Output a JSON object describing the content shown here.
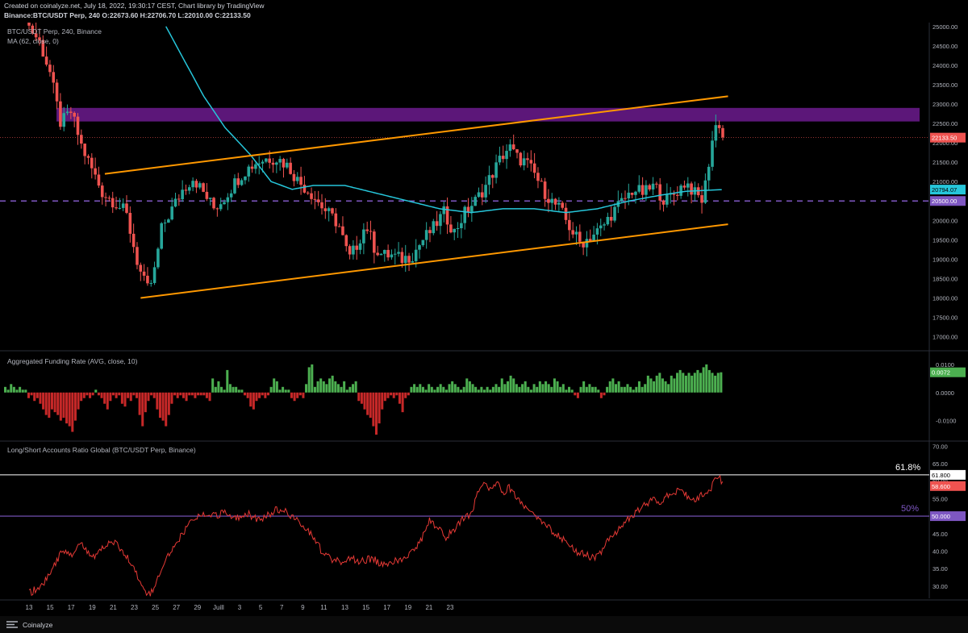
{
  "header": {
    "created_line": "Created on coinalyze.net, July 18, 2022, 19:30:17 CEST, Chart library by TradingView",
    "ohlc_line": "Binance:BTC/USDT Perp, 240 O:22673.60 H:22706.70 L:22010.00 C:22133.50"
  },
  "main_pane": {
    "symbol_label": "BTC/USDT Perp, 240, Binance",
    "ma_label": "MA (62, close, 0)"
  },
  "funding_pane": {
    "label": "Aggregated Funding Rate (AVG, close, 10)"
  },
  "ratio_pane": {
    "label": "Long/Short Accounts Ratio Global (BTC/USDT Perp, Binance)",
    "fib_upper": "61.8%",
    "fib_lower": "50%"
  },
  "footer": {
    "logo": "Coinalyze"
  },
  "colors": {
    "up": "#26a69a",
    "down": "#ef5350",
    "ma": "#26c6da",
    "trend": "#ff9800",
    "zone": "#7b1fa2",
    "dashed": "#7e57c2",
    "hist_up": "#4caf50",
    "hist_down": "#c62828",
    "ratio_line": "#e53935",
    "fib_upper": "#ffffff",
    "fib_lower": "#7e57c2"
  },
  "chart_data": [
    {
      "type": "line",
      "name": "price",
      "x_ticks": [
        "13",
        "15",
        "17",
        "19",
        "21",
        "23",
        "25",
        "27",
        "29",
        "Juill",
        "3",
        "5",
        "7",
        "9",
        "11",
        "13",
        "15",
        "17",
        "19",
        "21",
        "23"
      ],
      "y_ticks": [
        17000,
        17500,
        18000,
        18500,
        19000,
        19500,
        20000,
        20500,
        21000,
        21500,
        22000,
        22500,
        23000,
        23500,
        24000,
        24500,
        25000
      ],
      "y_tick_labels": [
        "17000.00",
        "17500.00",
        "18000.00",
        "18500.00",
        "19000.00",
        "19500.00",
        "20000.00",
        "20500.00",
        "21000.00",
        "21500.00",
        "22000.00",
        "22500.00",
        "23000.00",
        "23500.00",
        "24000.00",
        "24500.00",
        "25000.00"
      ],
      "ylim": [
        16700,
        25100
      ],
      "key_points": [
        [
          0,
          25000
        ],
        [
          0.5,
          24600
        ],
        [
          1,
          23800
        ],
        [
          1.5,
          22500
        ],
        [
          2,
          22800
        ],
        [
          2.5,
          21900
        ],
        [
          3,
          21300
        ],
        [
          3.5,
          20700
        ],
        [
          4,
          20500
        ],
        [
          4.6,
          20200
        ],
        [
          5.2,
          18800
        ],
        [
          5.6,
          18200
        ],
        [
          5.9,
          18500
        ],
        [
          6.3,
          19800
        ],
        [
          6.8,
          20300
        ],
        [
          7.3,
          20800
        ],
        [
          7.8,
          21100
        ],
        [
          8.3,
          20700
        ],
        [
          8.8,
          20300
        ],
        [
          9.3,
          20600
        ],
        [
          9.8,
          21000
        ],
        [
          10.3,
          21300
        ],
        [
          10.8,
          21500
        ],
        [
          11.3,
          21600
        ],
        [
          11.8,
          21600
        ],
        [
          12.3,
          21400
        ],
        [
          12.8,
          21000
        ],
        [
          13.4,
          20700
        ],
        [
          14.0,
          20300
        ],
        [
          14.7,
          19900
        ],
        [
          15.2,
          19000
        ],
        [
          15.6,
          19400
        ],
        [
          16.0,
          19900
        ],
        [
          16.4,
          19300
        ],
        [
          16.8,
          19100
        ],
        [
          17.2,
          19100
        ],
        [
          17.7,
          19000
        ],
        [
          18.2,
          19100
        ],
        [
          18.7,
          19500
        ],
        [
          19.2,
          19800
        ],
        [
          19.7,
          20200
        ],
        [
          20.2,
          19700
        ],
        [
          20.7,
          20200
        ],
        [
          21.2,
          20500
        ],
        [
          21.7,
          20900
        ],
        [
          22.0,
          21200
        ],
        [
          22.4,
          21600
        ],
        [
          22.8,
          21900
        ],
        [
          23.2,
          21600
        ],
        [
          23.6,
          21500
        ],
        [
          24.0,
          21200
        ],
        [
          24.4,
          20800
        ],
        [
          24.8,
          20500
        ],
        [
          25.2,
          20300
        ],
        [
          25.7,
          19800
        ],
        [
          26.2,
          19400
        ],
        [
          26.7,
          19600
        ],
        [
          27.2,
          19800
        ],
        [
          27.7,
          20200
        ],
        [
          28.2,
          20500
        ],
        [
          28.7,
          20800
        ],
        [
          29.2,
          20700
        ],
        [
          29.7,
          20900
        ],
        [
          30.2,
          20500
        ],
        [
          30.7,
          20700
        ],
        [
          31.2,
          21000
        ],
        [
          31.6,
          20700
        ],
        [
          32.0,
          20500
        ],
        [
          32.2,
          21200
        ],
        [
          32.55,
          22400
        ],
        [
          32.8,
          22500
        ],
        [
          32.95,
          22133.5
        ]
      ]
    },
    {
      "type": "line",
      "name": "MA (62, close, 0)",
      "key_points": [
        [
          6.5,
          25000
        ],
        [
          7.5,
          24000
        ],
        [
          8.3,
          23200
        ],
        [
          9.3,
          22400
        ],
        [
          10.5,
          21700
        ],
        [
          11.5,
          21000
        ],
        [
          12.5,
          20800
        ],
        [
          13.5,
          20900
        ],
        [
          15.0,
          20900
        ],
        [
          16.5,
          20700
        ],
        [
          18.0,
          20500
        ],
        [
          19.5,
          20300
        ],
        [
          21.0,
          20200
        ],
        [
          22.5,
          20300
        ],
        [
          24.0,
          20300
        ],
        [
          25.5,
          20200
        ],
        [
          27.0,
          20300
        ],
        [
          28.5,
          20500
        ],
        [
          30.0,
          20650
        ],
        [
          31.2,
          20750
        ],
        [
          32.95,
          20794.07
        ]
      ],
      "last_value": 20794.07,
      "last_label": "20794.07"
    },
    {
      "type": "annotation",
      "resistance_zone": [
        22550,
        22900
      ],
      "dashed_level": 20500,
      "dashed_label": "20500.00",
      "last_price_label": "22133.50",
      "upper_trendline": [
        [
          3.6,
          21200
        ],
        [
          33.2,
          23200
        ]
      ],
      "lower_trendline": [
        [
          5.3,
          18000
        ],
        [
          33.2,
          19900
        ]
      ]
    },
    {
      "type": "bar",
      "name": "Aggregated Funding Rate (AVG, close, 10)",
      "y_ticks": [
        -0.01,
        0,
        0.01
      ],
      "y_tick_labels": [
        "-0.0100",
        "0.0000",
        "0.0100"
      ],
      "ylim": [
        -0.017,
        0.014
      ],
      "last_value": 0.0072,
      "last_label": "0.0072",
      "values": [
        0.002,
        0.001,
        0.003,
        0.002,
        0.001,
        0.002,
        0.001,
        0.001,
        -0.002,
        -0.001,
        -0.003,
        -0.002,
        -0.004,
        -0.006,
        -0.008,
        -0.009,
        -0.006,
        -0.007,
        -0.008,
        -0.01,
        -0.009,
        -0.011,
        -0.012,
        -0.014,
        -0.01,
        -0.006,
        -0.003,
        -0.002,
        -0.001,
        -0.002,
        -0.001,
        0.001,
        -0.001,
        -0.002,
        -0.004,
        -0.006,
        -0.003,
        -0.001,
        -0.002,
        -0.001,
        -0.004,
        -0.005,
        -0.002,
        -0.003,
        -0.001,
        -0.002,
        -0.008,
        -0.012,
        -0.007,
        -0.003,
        -0.001,
        -0.002,
        -0.006,
        -0.009,
        -0.01,
        -0.012,
        -0.008,
        -0.004,
        -0.001,
        -0.002,
        -0.001,
        -0.002,
        -0.003,
        -0.001,
        -0.001,
        -0.002,
        -0.001,
        -0.001,
        -0.001,
        -0.002,
        -0.003,
        0.005,
        0.002,
        0.004,
        0.002,
        0.001,
        0.008,
        0.003,
        0.002,
        0.002,
        0.001,
        0.001,
        -0.001,
        -0.002,
        -0.005,
        -0.006,
        -0.003,
        -0.002,
        -0.001,
        -0.002,
        -0.001,
        0.002,
        0.005,
        0.004,
        0.001,
        0.002,
        0.001,
        0.001,
        -0.002,
        -0.003,
        -0.002,
        -0.001,
        -0.002,
        0.003,
        0.009,
        0.01,
        0.002,
        0.004,
        0.005,
        0.004,
        0.003,
        0.005,
        0.006,
        0.004,
        0.003,
        0.002,
        0.004,
        0.001,
        0.002,
        0.003,
        0.004,
        -0.003,
        -0.004,
        -0.006,
        -0.008,
        -0.009,
        -0.012,
        -0.015,
        -0.011,
        -0.006,
        -0.003,
        -0.002,
        -0.001,
        -0.002,
        -0.001,
        -0.004,
        -0.007,
        -0.002,
        -0.001,
        0.002,
        0.003,
        0.002,
        0.003,
        0.002,
        0.001,
        0.003,
        0.002,
        0.001,
        0.002,
        0.003,
        0.002,
        0.001,
        0.003,
        0.004,
        0.003,
        0.002,
        0.001,
        0.002,
        0.005,
        0.004,
        0.003,
        0.002,
        0.001,
        0.002,
        0.001,
        0.002,
        0.001,
        0.002,
        0.003,
        0.002,
        0.005,
        0.003,
        0.004,
        0.006,
        0.005,
        0.003,
        0.002,
        0.003,
        0.004,
        0.002,
        0.001,
        0.003,
        0.002,
        0.004,
        0.003,
        0.004,
        0.003,
        0.002,
        0.005,
        0.004,
        0.002,
        0.003,
        0.001,
        0.002,
        0.001,
        -0.001,
        -0.002,
        0.002,
        0.004,
        0.002,
        0.003,
        0.002,
        0.002,
        0.001,
        -0.002,
        -0.001,
        0.002,
        0.004,
        0.005,
        0.003,
        0.004,
        0.002,
        0.002,
        0.003,
        0.002,
        0.001,
        0.002,
        0.004,
        0.002,
        0.003,
        0.006,
        0.005,
        0.004,
        0.006,
        0.007,
        0.005,
        0.004,
        0.003,
        0.006,
        0.005,
        0.007,
        0.008,
        0.007,
        0.006,
        0.007,
        0.006,
        0.007,
        0.008,
        0.007,
        0.009,
        0.01,
        0.008,
        0.007,
        0.006,
        0.007,
        0.0072
      ]
    },
    {
      "type": "line",
      "name": "Long/Short Accounts Ratio Global (BTC/USDT Perp, Binance)",
      "y_ticks": [
        30,
        35,
        40,
        45,
        50,
        55,
        60,
        65,
        70
      ],
      "y_tick_labels": [
        "30.00",
        "35.00",
        "40.00",
        "45.00",
        "50.00",
        "55.00",
        "60.00",
        "65.00",
        "70.00"
      ],
      "ylim": [
        26.5,
        71
      ],
      "fib_levels": {
        "upper": 61.8,
        "upper_label": "61.800",
        "lower": 50.0,
        "lower_label": "50.000"
      },
      "last_value": 58.6,
      "last_label": "58.600",
      "key_points": [
        [
          0,
          28
        ],
        [
          0.3,
          29
        ],
        [
          0.7,
          31
        ],
        [
          1.2,
          36
        ],
        [
          1.6,
          40
        ],
        [
          2.0,
          39
        ],
        [
          2.5,
          42
        ],
        [
          3.0,
          38
        ],
        [
          3.5,
          41
        ],
        [
          4.0,
          43
        ],
        [
          4.4,
          40
        ],
        [
          4.7,
          38
        ],
        [
          5.0,
          35
        ],
        [
          5.3,
          31
        ],
        [
          5.6,
          27
        ],
        [
          5.9,
          29
        ],
        [
          6.2,
          34
        ],
        [
          6.5,
          38
        ],
        [
          6.9,
          41
        ],
        [
          7.3,
          45
        ],
        [
          7.8,
          49
        ],
        [
          8.3,
          51
        ],
        [
          8.8,
          50
        ],
        [
          9.3,
          51
        ],
        [
          9.8,
          49
        ],
        [
          10.3,
          51
        ],
        [
          10.8,
          49
        ],
        [
          11.3,
          50
        ],
        [
          11.8,
          52
        ],
        [
          12.3,
          51
        ],
        [
          12.7,
          49
        ],
        [
          13.1,
          47
        ],
        [
          13.5,
          44
        ],
        [
          13.9,
          40
        ],
        [
          14.3,
          38
        ],
        [
          14.8,
          37
        ],
        [
          15.3,
          38
        ],
        [
          15.8,
          37
        ],
        [
          16.3,
          38
        ],
        [
          16.8,
          36
        ],
        [
          17.3,
          37
        ],
        [
          17.8,
          38
        ],
        [
          18.3,
          40
        ],
        [
          18.7,
          44
        ],
        [
          19.0,
          49
        ],
        [
          19.4,
          47
        ],
        [
          19.8,
          44
        ],
        [
          20.2,
          46
        ],
        [
          20.6,
          49
        ],
        [
          21.0,
          51
        ],
        [
          21.3,
          56
        ],
        [
          21.6,
          60
        ],
        [
          21.9,
          58
        ],
        [
          22.2,
          60
        ],
        [
          22.5,
          57
        ],
        [
          22.8,
          58
        ],
        [
          23.2,
          55
        ],
        [
          23.6,
          52
        ],
        [
          24.0,
          50
        ],
        [
          24.4,
          48
        ],
        [
          24.8,
          46
        ],
        [
          25.2,
          44
        ],
        [
          25.6,
          42
        ],
        [
          26.0,
          40
        ],
        [
          26.4,
          39
        ],
        [
          26.8,
          38
        ],
        [
          27.2,
          40
        ],
        [
          27.6,
          44
        ],
        [
          28.0,
          46
        ],
        [
          28.4,
          49
        ],
        [
          28.8,
          51
        ],
        [
          29.2,
          53
        ],
        [
          29.6,
          55
        ],
        [
          30.0,
          54
        ],
        [
          30.4,
          56
        ],
        [
          30.8,
          57
        ],
        [
          31.2,
          56
        ],
        [
          31.6,
          55
        ],
        [
          32.0,
          56
        ],
        [
          32.3,
          57
        ],
        [
          32.55,
          60
        ],
        [
          32.75,
          62
        ],
        [
          32.95,
          58.6
        ]
      ]
    }
  ]
}
